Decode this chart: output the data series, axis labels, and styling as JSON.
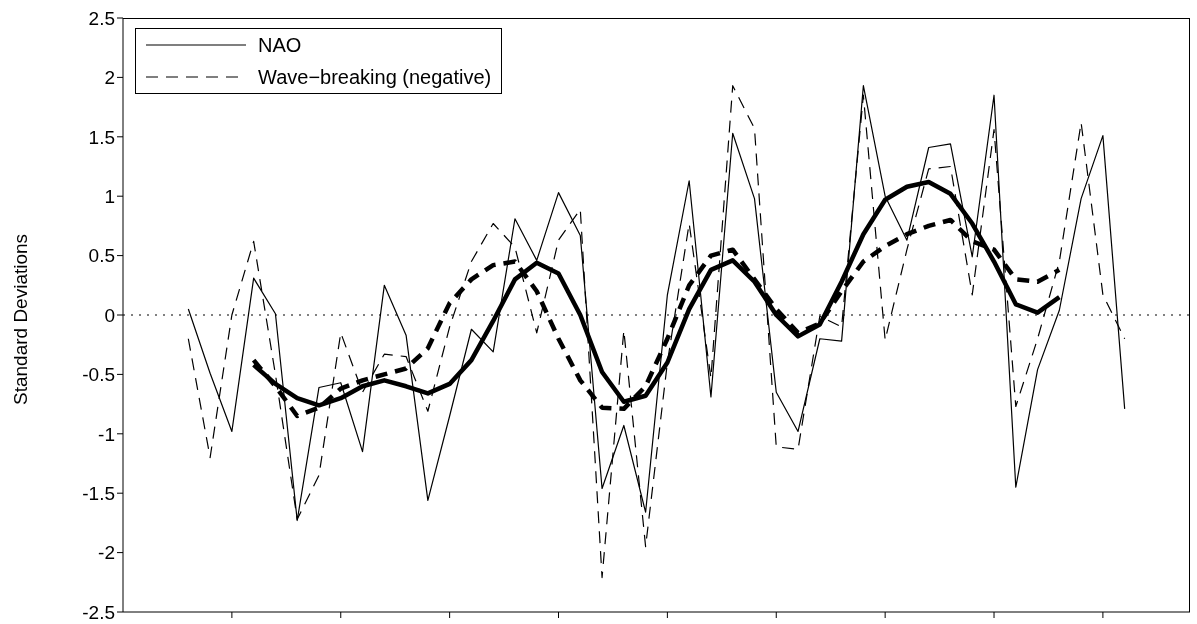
{
  "chart_data": {
    "type": "line",
    "ylabel": "Standard Deviations",
    "categories": [
      null,
      null,
      null,
      null,
      null,
      null,
      null,
      null,
      null,
      null,
      null,
      null,
      null,
      null,
      null,
      null,
      null,
      null,
      null,
      null,
      null,
      null,
      null,
      null,
      null,
      null,
      null,
      null,
      null,
      null,
      null,
      null,
      null,
      null,
      null,
      null,
      null,
      null,
      null,
      null,
      null,
      null,
      null,
      null,
      null,
      null,
      null,
      null,
      null,
      null
    ],
    "ylim": [
      -2.5,
      2.5
    ],
    "yticks": [
      -2.5,
      -2,
      -1.5,
      -1,
      -0.5,
      0,
      0.5,
      1,
      1.5,
      2,
      2.5
    ],
    "grid": false,
    "legend": "top left",
    "ref_lines": [
      {
        "axis": "y",
        "value": 0,
        "color": "#000000",
        "line_style": "dotted"
      }
    ],
    "series": [
      {
        "name": "NAO",
        "color": "#000000",
        "line_style": "solid",
        "values": [
          null,
          null,
          null,
          0.05,
          -0.49,
          -0.98,
          0.31,
          0.01,
          -1.73,
          -0.61,
          -0.57,
          -1.15,
          0.25,
          -0.17,
          -1.56,
          -0.85,
          -0.12,
          -0.31,
          0.81,
          0.46,
          1.03,
          0.67,
          -1.46,
          -0.93,
          -1.66,
          0.17,
          1.13,
          -0.69,
          1.53,
          0.98,
          -0.65,
          -0.98,
          -0.2,
          -0.22,
          1.93,
          1.0,
          0.63,
          1.41,
          1.44,
          0.49,
          1.85,
          -1.45,
          -0.46,
          0.04,
          0.98,
          1.51,
          -0.79,
          null,
          null,
          null
        ]
      },
      {
        "name": "Wave−breaking (negative)",
        "color": "#000000",
        "line_style": "dashed",
        "values": [
          null,
          null,
          null,
          -0.2,
          -1.2,
          0.0,
          0.62,
          -0.5,
          -1.72,
          -1.35,
          -0.15,
          -0.65,
          -0.33,
          -0.35,
          -0.81,
          -0.1,
          0.45,
          0.77,
          0.57,
          -0.15,
          0.63,
          0.89,
          -2.21,
          -0.13,
          -1.95,
          -0.4,
          0.77,
          -0.53,
          1.93,
          1.57,
          -1.11,
          -1.13,
          -0.01,
          -0.1,
          1.85,
          -0.21,
          0.55,
          1.23,
          1.25,
          0.17,
          1.56,
          -0.77,
          -0.2,
          0.45,
          1.62,
          0.17,
          -0.2,
          null,
          null,
          null
        ]
      },
      {
        "color": "#000000",
        "line_style": "solid",
        "values": [
          null,
          null,
          null,
          null,
          null,
          null,
          -0.42,
          -0.58,
          -0.7,
          -0.76,
          -0.7,
          -0.6,
          -0.55,
          -0.6,
          -0.66,
          -0.58,
          -0.38,
          -0.05,
          0.3,
          0.44,
          0.35,
          0.0,
          -0.48,
          -0.73,
          -0.68,
          -0.4,
          0.05,
          0.38,
          0.46,
          0.28,
          0.0,
          -0.18,
          -0.08,
          0.28,
          0.68,
          0.97,
          1.08,
          1.12,
          1.02,
          0.77,
          0.45,
          0.09,
          0.02,
          0.15,
          null,
          null,
          null,
          null,
          null,
          null
        ]
      },
      {
        "color": "#000000",
        "line_style": "dashed",
        "values": [
          null,
          null,
          null,
          null,
          null,
          null,
          -0.38,
          -0.6,
          -0.85,
          -0.78,
          -0.62,
          -0.55,
          -0.5,
          -0.45,
          -0.28,
          0.1,
          0.3,
          0.42,
          0.45,
          0.2,
          -0.2,
          -0.55,
          -0.78,
          -0.79,
          -0.6,
          -0.2,
          0.25,
          0.5,
          0.55,
          0.3,
          0.05,
          -0.15,
          -0.07,
          0.2,
          0.45,
          0.58,
          0.68,
          0.75,
          0.8,
          0.62,
          0.55,
          0.3,
          0.28,
          0.38,
          null,
          null,
          null,
          null,
          null,
          null
        ]
      }
    ]
  }
}
